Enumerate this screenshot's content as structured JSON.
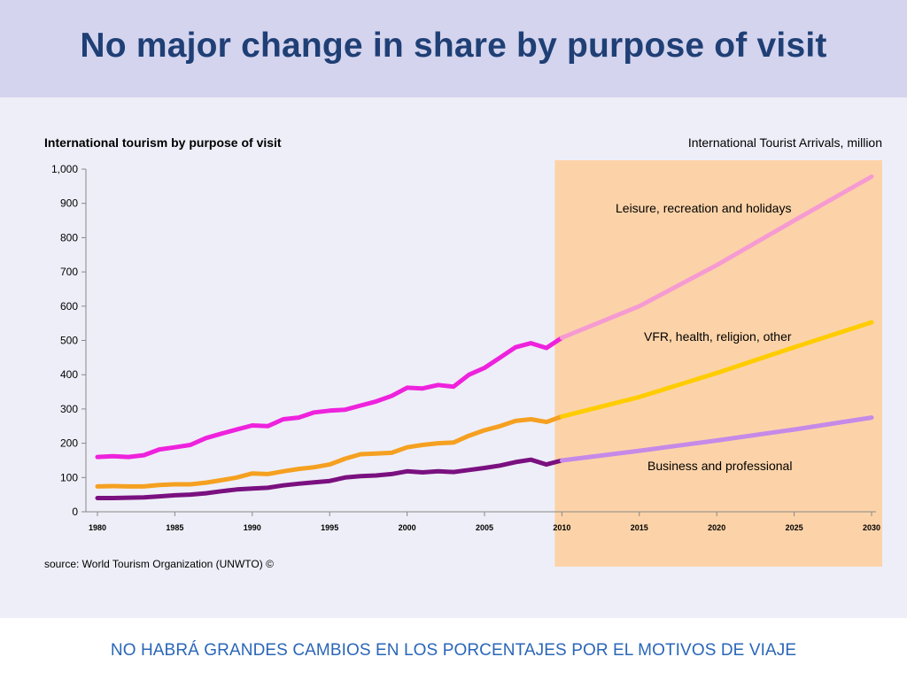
{
  "slide": {
    "title": "No major change in share by purpose of visit",
    "footer": "NO HABRÁ GRANDES CAMBIOS EN LOS PORCENTAJES POR EL MOTIVOS DE VIAJE"
  },
  "chart_data": {
    "type": "line",
    "title": "International tourism by purpose of visit",
    "unit_label": "International Tourist Arrivals, million",
    "source": "source: World Tourism Organization (UNWTO) ©",
    "xlim": [
      1980,
      2030
    ],
    "ylim": [
      0,
      1000
    ],
    "x_ticks": [
      1980,
      1985,
      1990,
      1995,
      2000,
      2005,
      2010,
      2015,
      2020,
      2025,
      2030
    ],
    "y_ticks": [
      0,
      100,
      200,
      300,
      400,
      500,
      600,
      700,
      800,
      900,
      1000
    ],
    "y_tick_labels": [
      "0",
      "100",
      "200",
      "300",
      "400",
      "500",
      "600",
      "700",
      "800",
      "900",
      "1,000"
    ],
    "forecast_region": {
      "from": 2010,
      "to": 2030,
      "color": "#fcd3a8"
    },
    "series": [
      {
        "name": "Leisure, recreation and holidays",
        "color": "#ee22dd",
        "forecast_color": "#f59bd2",
        "x": [
          1980,
          1981,
          1982,
          1983,
          1984,
          1985,
          1986,
          1987,
          1988,
          1989,
          1990,
          1991,
          1992,
          1993,
          1994,
          1995,
          1996,
          1997,
          1998,
          1999,
          2000,
          2001,
          2002,
          2003,
          2004,
          2005,
          2006,
          2007,
          2008,
          2009,
          2010
        ],
        "values": [
          160,
          162,
          160,
          165,
          182,
          188,
          195,
          215,
          228,
          240,
          252,
          250,
          270,
          275,
          290,
          295,
          298,
          310,
          322,
          338,
          362,
          360,
          370,
          365,
          400,
          420,
          450,
          480,
          492,
          478,
          508
        ],
        "forecast_x": [
          2010,
          2015,
          2020,
          2025,
          2030
        ],
        "forecast_values": [
          508,
          600,
          720,
          850,
          978
        ]
      },
      {
        "name": "VFR, health, religion, other",
        "color": "#f5a020",
        "forecast_color": "#ffcc00",
        "x": [
          1980,
          1981,
          1982,
          1983,
          1984,
          1985,
          1986,
          1987,
          1988,
          1989,
          1990,
          1991,
          1992,
          1993,
          1994,
          1995,
          1996,
          1997,
          1998,
          1999,
          2000,
          2001,
          2002,
          2003,
          2004,
          2005,
          2006,
          2007,
          2008,
          2009,
          2010
        ],
        "values": [
          74,
          75,
          74,
          74,
          78,
          80,
          80,
          85,
          92,
          100,
          112,
          110,
          118,
          125,
          130,
          138,
          155,
          168,
          170,
          172,
          188,
          195,
          200,
          202,
          222,
          238,
          250,
          265,
          270,
          262,
          278
        ],
        "forecast_x": [
          2010,
          2015,
          2020,
          2025,
          2030
        ],
        "forecast_values": [
          278,
          335,
          405,
          480,
          553
        ]
      },
      {
        "name": "Business and professional",
        "color": "#7a1080",
        "forecast_color": "#c58ae8",
        "x": [
          1980,
          1981,
          1982,
          1983,
          1984,
          1985,
          1986,
          1987,
          1988,
          1989,
          1990,
          1991,
          1992,
          1993,
          1994,
          1995,
          1996,
          1997,
          1998,
          1999,
          2000,
          2001,
          2002,
          2003,
          2004,
          2005,
          2006,
          2007,
          2008,
          2009,
          2010
        ],
        "values": [
          40,
          40,
          41,
          42,
          45,
          48,
          50,
          54,
          60,
          65,
          68,
          70,
          77,
          82,
          86,
          90,
          100,
          104,
          106,
          110,
          118,
          115,
          118,
          116,
          122,
          128,
          135,
          145,
          152,
          138,
          150
        ],
        "forecast_x": [
          2010,
          2015,
          2020,
          2025,
          2030
        ],
        "forecast_values": [
          150,
          178,
          208,
          240,
          275
        ]
      }
    ]
  }
}
